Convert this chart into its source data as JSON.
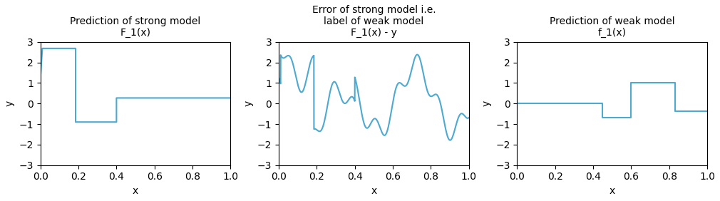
{
  "plot1_title": "Prediction of strong model\nF_1(x)",
  "plot2_title": "Error of strong model i.e.\nlabel of weak model\nF_1(x) - y",
  "plot3_title": "Prediction of weak model\nf_1(x)",
  "xlabel": "x",
  "ylabel": "y",
  "ylim": [
    -3,
    3
  ],
  "xlim": [
    0.0,
    1.0
  ],
  "line_color": "#4da9d0",
  "bg_color": "#ffffff",
  "plot1_segments": [
    [
      0.0,
      1.28
    ],
    [
      0.01,
      2.68
    ],
    [
      0.185,
      2.68
    ],
    [
      0.185,
      -0.9
    ],
    [
      0.4,
      -0.9
    ],
    [
      0.4,
      0.27
    ],
    [
      1.0,
      0.27
    ]
  ],
  "plot3_segments": [
    [
      0.0,
      0.0
    ],
    [
      0.45,
      0.0
    ],
    [
      0.45,
      -0.68
    ],
    [
      0.6,
      -0.68
    ],
    [
      0.6,
      1.0
    ],
    [
      0.83,
      1.0
    ],
    [
      0.83,
      -0.38
    ],
    [
      1.0,
      -0.38
    ]
  ],
  "n_points": 2000,
  "title_fontsize": 10,
  "figsize": [
    10.1,
    2.82
  ],
  "dpi": 100
}
